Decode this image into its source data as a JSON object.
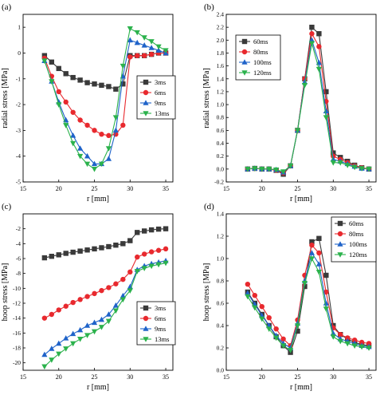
{
  "colors": {
    "black": "#3a3a3a",
    "red": "#e8292e",
    "blue": "#1f63c9",
    "green": "#2bb24c",
    "axis": "#000000"
  },
  "chart_data": [
    {
      "type": "line",
      "panel_label": "(a)",
      "xlabel": "r [mm]",
      "ylabel": "radial stress [MPa]",
      "xlim": [
        15,
        36
      ],
      "ylim": [
        -5,
        1.5
      ],
      "xticks": [
        "15",
        "20",
        "25",
        "30",
        "35"
      ],
      "yticks": [
        "-5",
        "-4",
        "-3",
        "-2",
        "-1",
        "0",
        "1"
      ],
      "legend_position": "center-right",
      "series": [
        {
          "name": "3ms",
          "color": "#3a3a3a",
          "marker": "square",
          "x": [
            18,
            19,
            20,
            21,
            22,
            23,
            24,
            25,
            26,
            27,
            28,
            29,
            30,
            31,
            32,
            33,
            34,
            35
          ],
          "y": [
            -0.1,
            -0.35,
            -0.6,
            -0.8,
            -0.95,
            -1.05,
            -1.15,
            -1.2,
            -1.25,
            -1.3,
            -1.4,
            -1.2,
            -0.1,
            -0.1,
            -0.1,
            -0.05,
            0.0,
            0.0
          ]
        },
        {
          "name": "6ms",
          "color": "#e8292e",
          "marker": "circle",
          "x": [
            18,
            19,
            20,
            21,
            22,
            23,
            24,
            25,
            26,
            27,
            28,
            29,
            30,
            31,
            32,
            33,
            34,
            35
          ],
          "y": [
            -0.2,
            -0.9,
            -1.5,
            -1.9,
            -2.3,
            -2.6,
            -2.8,
            -3.0,
            -3.15,
            -3.2,
            -3.15,
            -2.8,
            -0.15,
            -0.1,
            -0.1,
            -0.05,
            0.0,
            0.0
          ]
        },
        {
          "name": "9ms",
          "color": "#1f63c9",
          "marker": "triangle-up",
          "x": [
            18,
            19,
            20,
            21,
            22,
            23,
            24,
            25,
            26,
            27,
            28,
            29,
            30,
            31,
            32,
            33,
            34,
            35
          ],
          "y": [
            -0.3,
            -1.1,
            -1.9,
            -2.6,
            -3.2,
            -3.7,
            -4.0,
            -4.3,
            -4.3,
            -4.1,
            -3.0,
            -0.9,
            0.5,
            0.4,
            0.3,
            0.2,
            0.1,
            0.0
          ]
        },
        {
          "name": "13ms",
          "color": "#2bb24c",
          "marker": "triangle-down",
          "x": [
            18,
            19,
            20,
            21,
            22,
            23,
            24,
            25,
            26,
            27,
            28,
            29,
            30,
            31,
            32,
            33,
            34,
            35
          ],
          "y": [
            -0.3,
            -1.1,
            -2.0,
            -2.8,
            -3.5,
            -4.0,
            -4.3,
            -4.5,
            -4.3,
            -3.7,
            -2.5,
            -0.5,
            0.95,
            0.8,
            0.6,
            0.45,
            0.25,
            0.1
          ]
        }
      ]
    },
    {
      "type": "line",
      "panel_label": "(b)",
      "xlabel": "r [mm]",
      "ylabel": "radial stress [MPa]",
      "xlim": [
        15,
        36
      ],
      "ylim": [
        -0.2,
        2.4
      ],
      "xticks": [
        "15",
        "20",
        "25",
        "30",
        "35"
      ],
      "yticks": [
        "-0.2",
        "0.0",
        "0.2",
        "0.4",
        "0.6",
        "0.8",
        "1.0",
        "1.2",
        "1.4",
        "1.6",
        "1.8",
        "2.0",
        "2.2",
        "2.4"
      ],
      "legend_position": "top-left",
      "series": [
        {
          "name": "60ms",
          "color": "#3a3a3a",
          "marker": "square",
          "x": [
            18,
            19,
            20,
            21,
            22,
            23,
            24,
            25,
            26,
            27,
            28,
            29,
            30,
            31,
            32,
            33,
            34,
            35
          ],
          "y": [
            0.0,
            0.01,
            0.0,
            0.0,
            -0.02,
            -0.08,
            0.05,
            0.6,
            1.4,
            2.2,
            2.1,
            1.2,
            0.25,
            0.18,
            0.12,
            0.06,
            0.02,
            0.0
          ]
        },
        {
          "name": "80ms",
          "color": "#e8292e",
          "marker": "circle",
          "x": [
            18,
            19,
            20,
            21,
            22,
            23,
            24,
            25,
            26,
            27,
            28,
            29,
            30,
            31,
            32,
            33,
            34,
            35
          ],
          "y": [
            0.0,
            0.01,
            0.0,
            0.0,
            -0.02,
            -0.06,
            0.05,
            0.6,
            1.4,
            2.1,
            1.9,
            1.05,
            0.2,
            0.15,
            0.1,
            0.05,
            0.02,
            0.0
          ]
        },
        {
          "name": "100ms",
          "color": "#1f63c9",
          "marker": "triangle-up",
          "x": [
            18,
            19,
            20,
            21,
            22,
            23,
            24,
            25,
            26,
            27,
            28,
            29,
            30,
            31,
            32,
            33,
            34,
            35
          ],
          "y": [
            0.0,
            0.01,
            0.0,
            0.0,
            -0.01,
            -0.05,
            0.05,
            0.6,
            1.35,
            2.0,
            1.65,
            0.9,
            0.15,
            0.12,
            0.08,
            0.04,
            0.01,
            0.0
          ]
        },
        {
          "name": "120ms",
          "color": "#2bb24c",
          "marker": "triangle-down",
          "x": [
            18,
            19,
            20,
            21,
            22,
            23,
            24,
            25,
            26,
            27,
            28,
            29,
            30,
            31,
            32,
            33,
            34,
            35
          ],
          "y": [
            0.0,
            0.01,
            0.0,
            0.0,
            -0.01,
            -0.04,
            0.05,
            0.6,
            1.3,
            1.95,
            1.55,
            0.8,
            0.1,
            0.1,
            0.06,
            0.03,
            0.01,
            0.0
          ]
        }
      ]
    },
    {
      "type": "line",
      "panel_label": "(c)",
      "xlabel": "r [mm]",
      "ylabel": "hoop stress [MPa]",
      "xlim": [
        15,
        36
      ],
      "ylim": [
        -21,
        0
      ],
      "xticks": [
        "15",
        "20",
        "25",
        "30",
        "35"
      ],
      "yticks": [
        "-20",
        "-18",
        "-16",
        "-14",
        "-12",
        "-10",
        "-8",
        "-6",
        "-4",
        "-2"
      ],
      "legend_position": "bottom-right",
      "series": [
        {
          "name": "3ms",
          "color": "#3a3a3a",
          "marker": "square",
          "x": [
            18,
            19,
            20,
            21,
            22,
            23,
            24,
            25,
            26,
            27,
            28,
            29,
            30,
            31,
            32,
            33,
            34,
            35
          ],
          "y": [
            -5.9,
            -5.7,
            -5.5,
            -5.3,
            -5.15,
            -5.0,
            -4.85,
            -4.7,
            -4.55,
            -4.4,
            -4.2,
            -4.0,
            -3.6,
            -2.5,
            -2.3,
            -2.15,
            -2.05,
            -2.0
          ]
        },
        {
          "name": "6ms",
          "color": "#e8292e",
          "marker": "circle",
          "x": [
            18,
            19,
            20,
            21,
            22,
            23,
            24,
            25,
            26,
            27,
            28,
            29,
            30,
            31,
            32,
            33,
            34,
            35
          ],
          "y": [
            -14.0,
            -13.5,
            -12.9,
            -12.4,
            -11.9,
            -11.5,
            -11.1,
            -10.7,
            -10.3,
            -9.9,
            -9.4,
            -8.8,
            -7.8,
            -5.8,
            -5.4,
            -5.1,
            -4.9,
            -4.7
          ]
        },
        {
          "name": "9ms",
          "color": "#1f63c9",
          "marker": "triangle-up",
          "x": [
            18,
            19,
            20,
            21,
            22,
            23,
            24,
            25,
            26,
            27,
            28,
            29,
            30,
            31,
            32,
            33,
            34,
            35
          ],
          "y": [
            -18.9,
            -18.1,
            -17.4,
            -16.7,
            -16.1,
            -15.6,
            -15.0,
            -14.6,
            -14.2,
            -13.5,
            -12.3,
            -11.0,
            -9.8,
            -7.5,
            -7.0,
            -6.7,
            -6.5,
            -6.3
          ]
        },
        {
          "name": "13ms",
          "color": "#2bb24c",
          "marker": "triangle-down",
          "x": [
            18,
            19,
            20,
            21,
            22,
            23,
            24,
            25,
            26,
            27,
            28,
            29,
            30,
            31,
            32,
            33,
            34,
            35
          ],
          "y": [
            -20.5,
            -19.6,
            -18.8,
            -18.1,
            -17.4,
            -16.8,
            -16.3,
            -15.8,
            -15.2,
            -14.4,
            -13.0,
            -11.5,
            -10.3,
            -7.7,
            -7.3,
            -7.0,
            -6.8,
            -6.6
          ]
        }
      ]
    },
    {
      "type": "line",
      "panel_label": "(d)",
      "xlabel": "r [mm]",
      "ylabel": "hoop stress [MPa]",
      "xlim": [
        15,
        36
      ],
      "ylim": [
        0,
        1.4
      ],
      "xticks": [
        "15",
        "20",
        "25",
        "30",
        "35"
      ],
      "yticks": [
        "0.0",
        "0.2",
        "0.4",
        "0.6",
        "0.8",
        "1.0",
        "1.2",
        "1.4"
      ],
      "legend_position": "top-right",
      "series": [
        {
          "name": "60ms",
          "color": "#3a3a3a",
          "marker": "square",
          "x": [
            18,
            19,
            20,
            21,
            22,
            23,
            24,
            25,
            26,
            27,
            28,
            29,
            30,
            31,
            32,
            33,
            34,
            35
          ],
          "y": [
            0.7,
            0.6,
            0.5,
            0.4,
            0.3,
            0.22,
            0.16,
            0.35,
            0.75,
            1.15,
            1.18,
            0.85,
            0.4,
            0.32,
            0.28,
            0.25,
            0.23,
            0.22
          ]
        },
        {
          "name": "80ms",
          "color": "#e8292e",
          "marker": "circle",
          "x": [
            18,
            19,
            20,
            21,
            22,
            23,
            24,
            25,
            26,
            27,
            28,
            29,
            30,
            31,
            32,
            33,
            34,
            35
          ],
          "y": [
            0.77,
            0.67,
            0.57,
            0.47,
            0.37,
            0.28,
            0.22,
            0.45,
            0.85,
            1.12,
            1.05,
            0.7,
            0.38,
            0.32,
            0.29,
            0.27,
            0.25,
            0.24
          ]
        },
        {
          "name": "100ms",
          "color": "#1f63c9",
          "marker": "triangle-up",
          "x": [
            18,
            19,
            20,
            21,
            22,
            23,
            24,
            25,
            26,
            27,
            28,
            29,
            30,
            31,
            32,
            33,
            34,
            35
          ],
          "y": [
            0.69,
            0.59,
            0.49,
            0.4,
            0.31,
            0.24,
            0.2,
            0.42,
            0.8,
            1.05,
            0.95,
            0.6,
            0.33,
            0.28,
            0.26,
            0.24,
            0.22,
            0.21
          ]
        },
        {
          "name": "120ms",
          "color": "#2bb24c",
          "marker": "triangle-down",
          "x": [
            18,
            19,
            20,
            21,
            22,
            23,
            24,
            25,
            26,
            27,
            28,
            29,
            30,
            31,
            32,
            33,
            34,
            35
          ],
          "y": [
            0.66,
            0.56,
            0.46,
            0.37,
            0.29,
            0.22,
            0.18,
            0.4,
            0.78,
            1.0,
            0.88,
            0.55,
            0.3,
            0.26,
            0.24,
            0.22,
            0.21,
            0.2
          ]
        }
      ]
    }
  ]
}
